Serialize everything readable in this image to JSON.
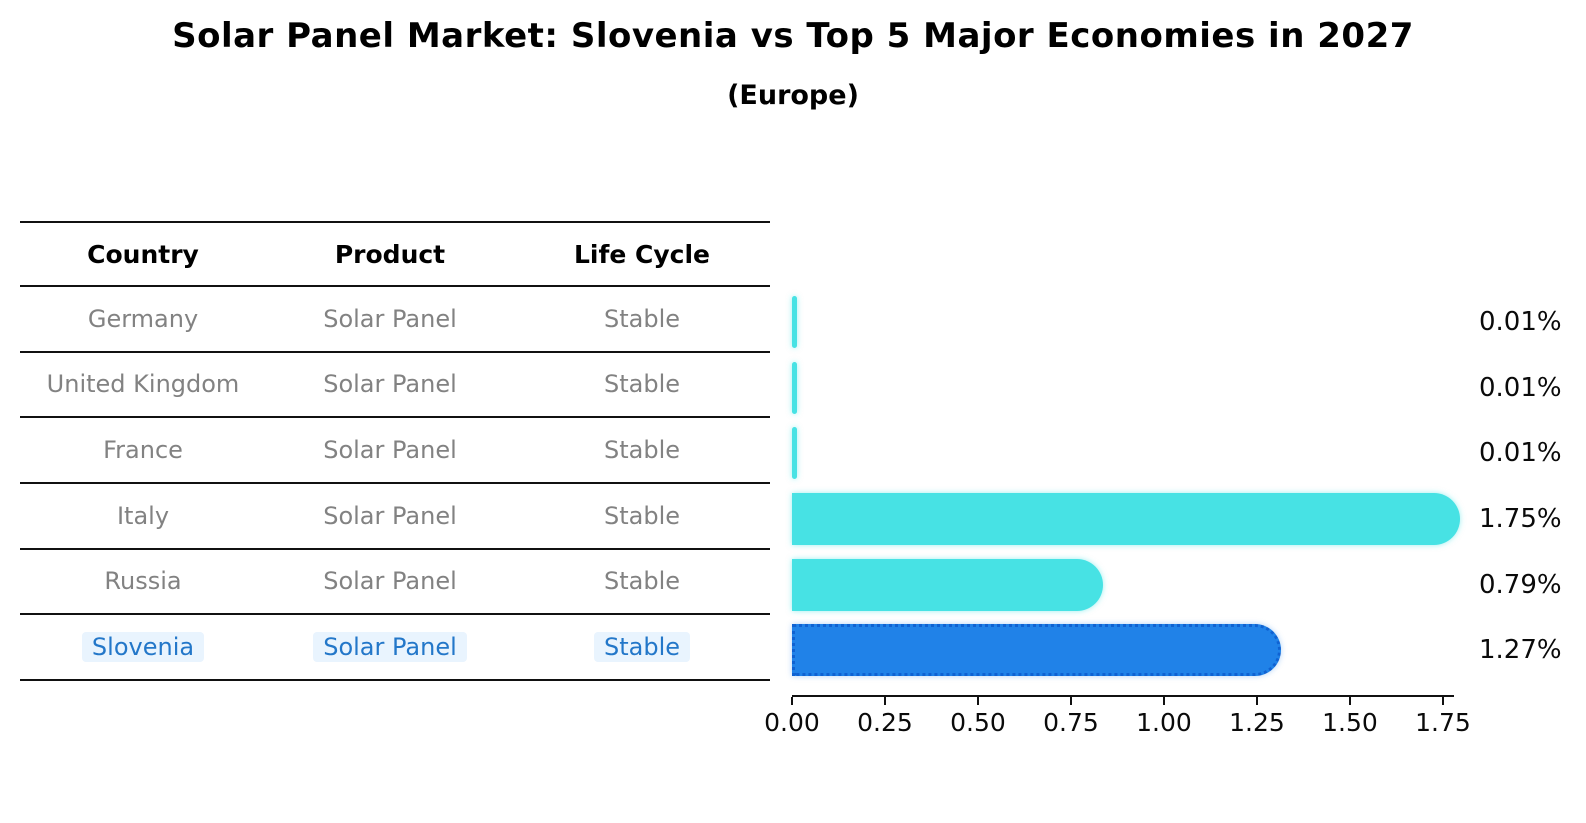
{
  "page": {
    "title": "Solar Panel Market: Slovenia vs Top 5 Major Economies in 2027",
    "subtitle": "(Europe)"
  },
  "table": {
    "headers": [
      "Country",
      "Product",
      "Life Cycle"
    ],
    "rows": [
      {
        "cells": [
          "Germany",
          "Solar Panel",
          "Stable"
        ],
        "highlight": false
      },
      {
        "cells": [
          "United Kingdom",
          "Solar Panel",
          "Stable"
        ],
        "highlight": false
      },
      {
        "cells": [
          "France",
          "Solar Panel",
          "Stable"
        ],
        "highlight": false
      },
      {
        "cells": [
          "Italy",
          "Solar Panel",
          "Stable"
        ],
        "highlight": false
      },
      {
        "cells": [
          "Russia",
          "Solar Panel",
          "Stable"
        ],
        "highlight": false
      },
      {
        "cells": [
          "Slovenia",
          "Solar Panel",
          "Stable"
        ],
        "highlight": true
      }
    ]
  },
  "chart_data": {
    "type": "bar",
    "orientation": "horizontal",
    "title": "Solar Panel Market: Slovenia vs Top 5 Major Economies in 2027",
    "subtitle": "(Europe)",
    "categories": [
      "Germany",
      "United Kingdom",
      "France",
      "Italy",
      "Russia",
      "Slovenia"
    ],
    "values": [
      0.01,
      0.01,
      0.01,
      1.75,
      0.79,
      1.27
    ],
    "value_labels": [
      "0.01%",
      "0.01%",
      "0.01%",
      "1.75%",
      "0.79%",
      "1.27%"
    ],
    "x_ticks": [
      "0.00",
      "0.25",
      "0.50",
      "0.75",
      "1.00",
      "1.25",
      "1.50",
      "1.75"
    ],
    "x_tick_values": [
      0,
      0.25,
      0.5,
      0.75,
      1.0,
      1.25,
      1.5,
      1.75
    ],
    "xlim": [
      0,
      1.78
    ],
    "grid": false,
    "legend": null,
    "highlight_index": 5,
    "bar_color_default": "#47e2e4",
    "bar_color_highlight": "#2082e8",
    "highlight_border_color": "#0f62d2"
  },
  "colors": {
    "text_primary": "#000000",
    "table_text": "#828282",
    "highlight_text": "#2377c9",
    "line": "#111111"
  }
}
